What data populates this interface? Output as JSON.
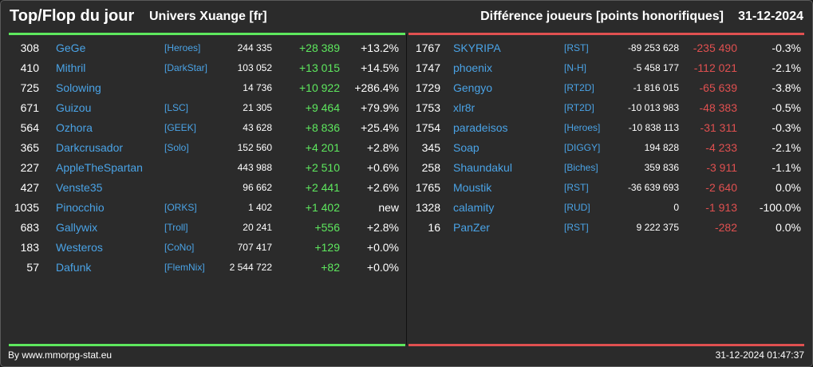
{
  "header": {
    "title": "Top/Flop du jour",
    "subtitle": "Univers Xuange [fr]",
    "metric": "Différence joueurs [points honorifiques]",
    "date": "31-12-2024"
  },
  "colors": {
    "top_accent": "#5ee85e",
    "flop_accent": "#e05050",
    "name_color": "#4aa3e6",
    "background": "#2b2b2b"
  },
  "top": [
    {
      "rank": "308",
      "name": "GeGe",
      "alliance": "[Heroes]",
      "points": "244 335",
      "diff": "+28 389",
      "pct": "+13.2%"
    },
    {
      "rank": "410",
      "name": "Mithril",
      "alliance": "[DarkStar]",
      "points": "103 052",
      "diff": "+13 015",
      "pct": "+14.5%"
    },
    {
      "rank": "725",
      "name": "Solowing",
      "alliance": "",
      "points": "14 736",
      "diff": "+10 922",
      "pct": "+286.4%"
    },
    {
      "rank": "671",
      "name": "Guizou",
      "alliance": "[LSC]",
      "points": "21 305",
      "diff": "+9 464",
      "pct": "+79.9%"
    },
    {
      "rank": "564",
      "name": "Ozhora",
      "alliance": "[GEEK]",
      "points": "43 628",
      "diff": "+8 836",
      "pct": "+25.4%"
    },
    {
      "rank": "365",
      "name": "Darkcrusador",
      "alliance": "[Solo]",
      "points": "152 560",
      "diff": "+4 201",
      "pct": "+2.8%"
    },
    {
      "rank": "227",
      "name": "AppleTheSpartan",
      "alliance": "",
      "points": "443 988",
      "diff": "+2 510",
      "pct": "+0.6%"
    },
    {
      "rank": "427",
      "name": "Venste35",
      "alliance": "",
      "points": "96 662",
      "diff": "+2 441",
      "pct": "+2.6%"
    },
    {
      "rank": "1035",
      "name": "Pinocchio",
      "alliance": "[ORKS]",
      "points": "1 402",
      "diff": "+1 402",
      "pct": "new"
    },
    {
      "rank": "683",
      "name": "Gallywix",
      "alliance": "[Troll]",
      "points": "20 241",
      "diff": "+556",
      "pct": "+2.8%"
    },
    {
      "rank": "183",
      "name": "Westeros",
      "alliance": "[CoNo]",
      "points": "707 417",
      "diff": "+129",
      "pct": "+0.0%"
    },
    {
      "rank": "57",
      "name": "Dafunk",
      "alliance": "[FlemNix]",
      "points": "2 544 722",
      "diff": "+82",
      "pct": "+0.0%"
    }
  ],
  "flop": [
    {
      "rank": "1767",
      "name": "SKYRIPA",
      "alliance": "[RST]",
      "points": "-89 253 628",
      "diff": "-235 490",
      "pct": "-0.3%"
    },
    {
      "rank": "1747",
      "name": "phoenix",
      "alliance": "[N-H]",
      "points": "-5 458 177",
      "diff": "-112 021",
      "pct": "-2.1%"
    },
    {
      "rank": "1729",
      "name": "Gengyo",
      "alliance": "[RT2D]",
      "points": "-1 816 015",
      "diff": "-65 639",
      "pct": "-3.8%"
    },
    {
      "rank": "1753",
      "name": "xlr8r",
      "alliance": "[RT2D]",
      "points": "-10 013 983",
      "diff": "-48 383",
      "pct": "-0.5%"
    },
    {
      "rank": "1754",
      "name": "paradeisos",
      "alliance": "[Heroes]",
      "points": "-10 838 113",
      "diff": "-31 311",
      "pct": "-0.3%"
    },
    {
      "rank": "345",
      "name": "Soap",
      "alliance": "[DIGGY]",
      "points": "194 828",
      "diff": "-4 233",
      "pct": "-2.1%"
    },
    {
      "rank": "258",
      "name": "Shaundakul",
      "alliance": "[Biches]",
      "points": "359 836",
      "diff": "-3 911",
      "pct": "-1.1%"
    },
    {
      "rank": "1765",
      "name": "Moustik",
      "alliance": "[RST]",
      "points": "-36 639 693",
      "diff": "-2 640",
      "pct": "0.0%"
    },
    {
      "rank": "1328",
      "name": "calamity",
      "alliance": "[RUD]",
      "points": "0",
      "diff": "-1 913",
      "pct": "-100.0%"
    },
    {
      "rank": "16",
      "name": "PanZer",
      "alliance": "[RST]",
      "points": "9 222 375",
      "diff": "-282",
      "pct": "0.0%"
    }
  ],
  "footer": {
    "credit": "By www.mmorpg-stat.eu",
    "timestamp": "31-12-2024 01:47:37"
  }
}
